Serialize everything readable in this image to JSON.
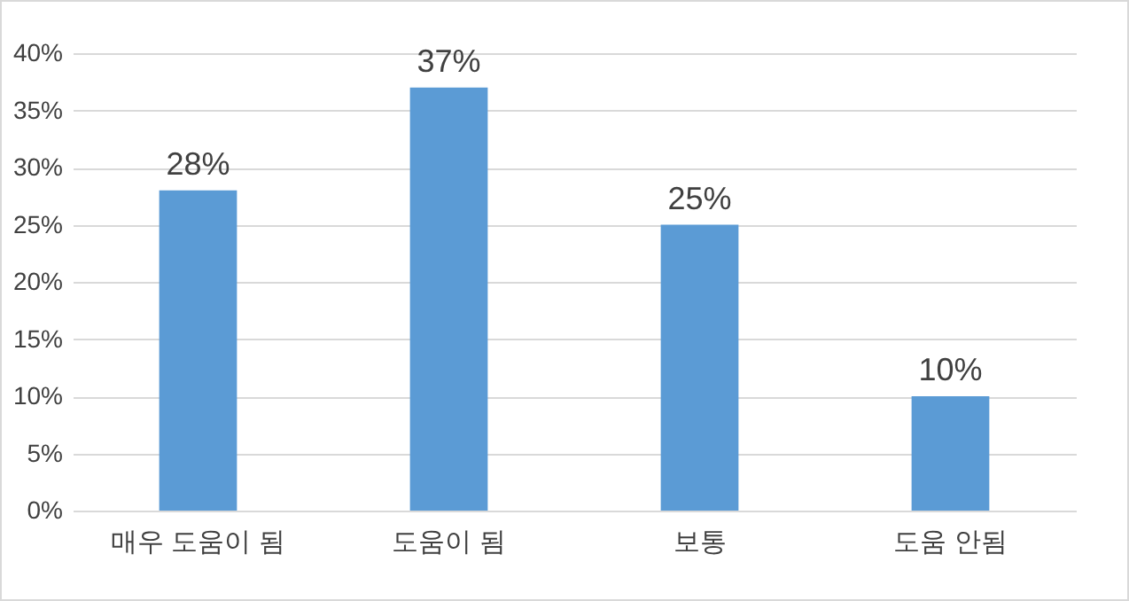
{
  "chart_data": {
    "type": "bar",
    "categories": [
      "매우 도움이 됨",
      "도움이 됨",
      "보통",
      "도움 안됨"
    ],
    "values": [
      28,
      37,
      25,
      10
    ],
    "value_labels": [
      "28%",
      "37%",
      "25%",
      "10%"
    ],
    "color": "#5b9bd5",
    "ylim": [
      0,
      40
    ],
    "yticks": [
      {
        "value": 0,
        "label": "0%"
      },
      {
        "value": 5,
        "label": "5%"
      },
      {
        "value": 10,
        "label": "10%"
      },
      {
        "value": 15,
        "label": "15%"
      },
      {
        "value": 20,
        "label": "20%"
      },
      {
        "value": 25,
        "label": "25%"
      },
      {
        "value": 30,
        "label": "30%"
      },
      {
        "value": 35,
        "label": "35%"
      },
      {
        "value": 40,
        "label": "40%"
      }
    ],
    "grid": "y"
  }
}
